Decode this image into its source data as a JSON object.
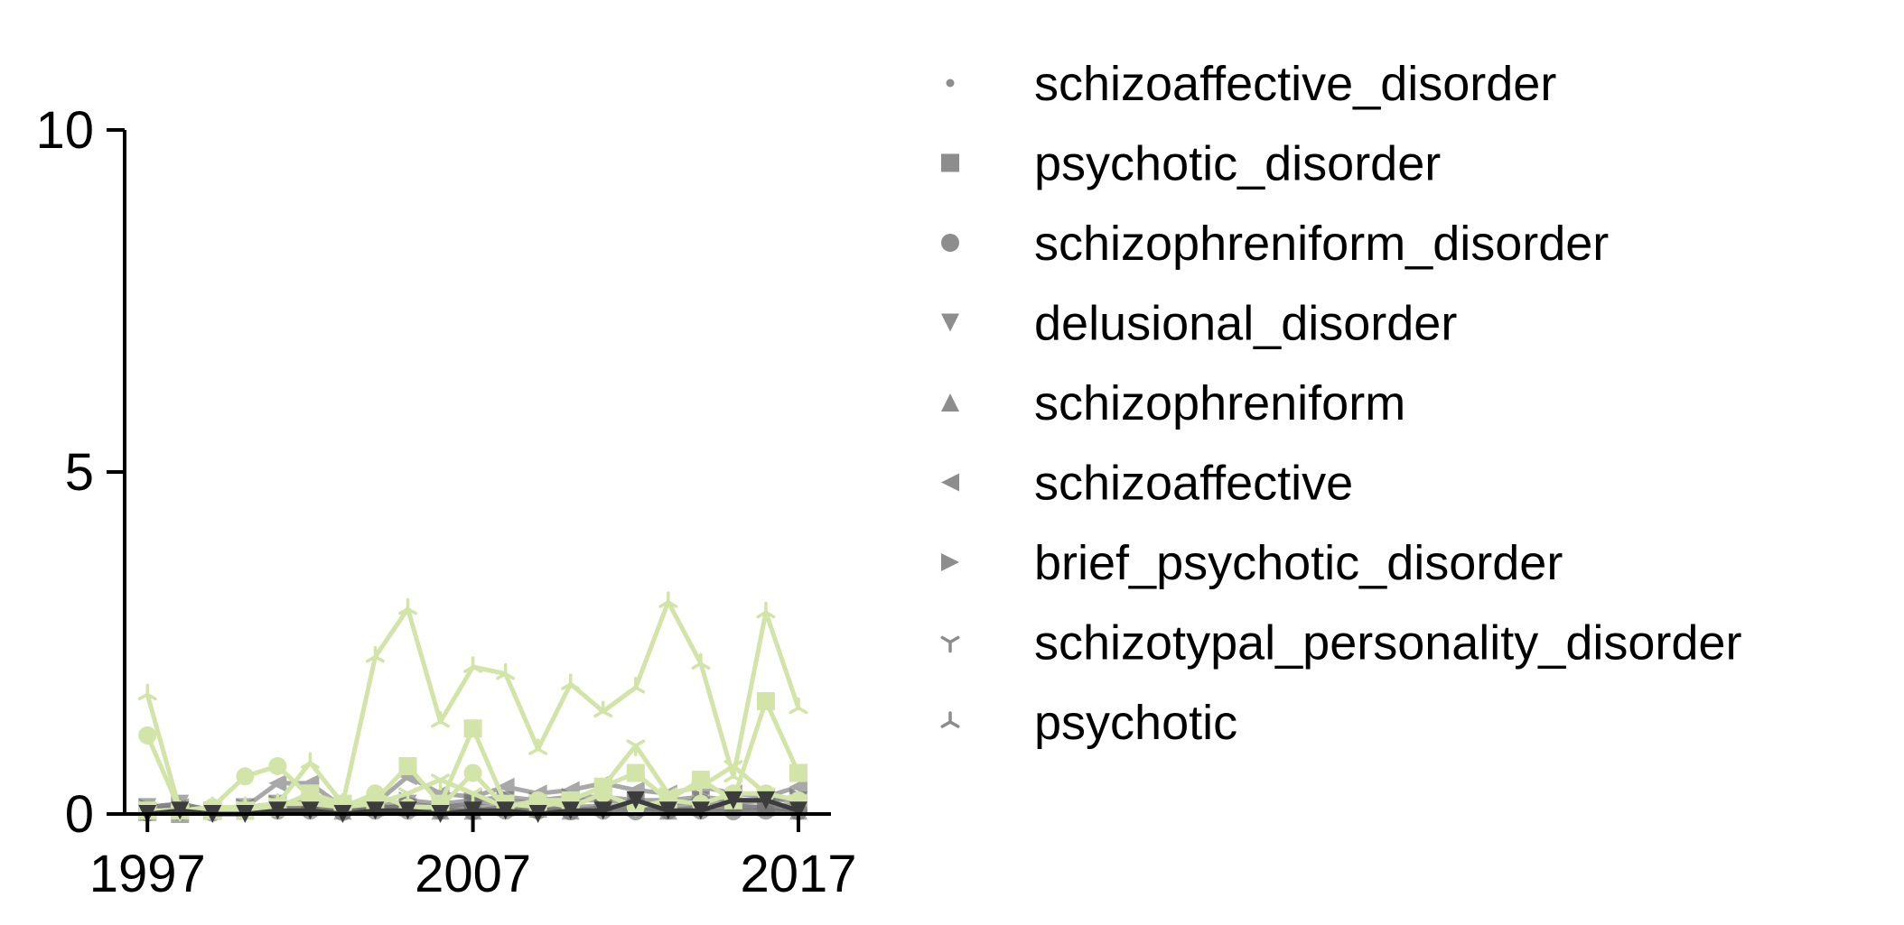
{
  "chart_data": {
    "type": "line",
    "x": [
      1997,
      1998,
      1999,
      2000,
      2001,
      2002,
      2003,
      2004,
      2005,
      2006,
      2007,
      2008,
      2009,
      2010,
      2011,
      2012,
      2013,
      2014,
      2015,
      2016,
      2017
    ],
    "xticks": [
      1997,
      2007,
      2017
    ],
    "xtick_labels": [
      "1997",
      "2007",
      "2017"
    ],
    "yticks": [
      0,
      5,
      10
    ],
    "ytick_labels": [
      "0",
      "5",
      "10"
    ],
    "xlim": [
      1996.3,
      2018.0
    ],
    "ylim": [
      0,
      10
    ],
    "grid": false,
    "legend_position": "right",
    "colors": {
      "green": "#d2e4a8",
      "gray": "#707070",
      "dark": "#3c3c3c",
      "axis": "#000000"
    },
    "series": [
      {
        "name": "schizoaffective_disorder",
        "marker": "point",
        "color": "#707070",
        "alpha": 0.6,
        "values": [
          0.03,
          0.02,
          0.02,
          0.05,
          0.04,
          0.06,
          0.03,
          0.05,
          0.04,
          0.06,
          0.05,
          0.04,
          0.06,
          0.05,
          0.04,
          0.05,
          0.06,
          0.04,
          0.05,
          0.05,
          0.06
        ]
      },
      {
        "name": "psychotic_disorder",
        "marker": "square",
        "color": "#707070",
        "alpha": 0.6,
        "values": [
          0.03,
          0.0,
          0.05,
          0.1,
          0.15,
          0.15,
          0.1,
          0.1,
          0.1,
          0.1,
          0.12,
          0.1,
          0.08,
          0.1,
          0.12,
          0.1,
          0.1,
          0.12,
          0.12,
          0.1,
          0.15
        ]
      },
      {
        "name": "schizophreniform_disorder",
        "marker": "circle",
        "color": "#707070",
        "alpha": 0.6,
        "values": [
          0.02,
          0.03,
          0.02,
          0.05,
          0.05,
          0.05,
          0.03,
          0.05,
          0.05,
          0.05,
          0.04,
          0.05,
          0.05,
          0.04,
          0.05,
          0.04,
          0.05,
          0.05,
          0.04,
          0.05,
          0.04
        ]
      },
      {
        "name": "delusional_disorder",
        "marker": "triangle-down",
        "color": "#707070",
        "alpha": 0.6,
        "values": [
          0.1,
          0.15,
          0.05,
          0.05,
          0.1,
          0.1,
          0.05,
          0.05,
          0.15,
          0.1,
          0.15,
          0.2,
          0.15,
          0.2,
          0.2,
          0.15,
          0.15,
          0.2,
          0.15,
          0.2,
          0.2
        ]
      },
      {
        "name": "schizophreniform",
        "marker": "triangle-up",
        "color": "#707070",
        "alpha": 0.6,
        "values": [
          0.05,
          0.05,
          0.05,
          0.05,
          0.1,
          0.1,
          0.05,
          0.1,
          0.1,
          0.05,
          0.05,
          0.1,
          0.1,
          0.05,
          0.1,
          0.1,
          0.05,
          0.1,
          0.1,
          0.1,
          0.05
        ]
      },
      {
        "name": "schizoaffective",
        "marker": "triangle-left",
        "color": "#707070",
        "alpha": 0.6,
        "values": [
          0.05,
          0.1,
          0.05,
          0.1,
          0.45,
          0.45,
          0.1,
          0.15,
          0.55,
          0.3,
          0.25,
          0.4,
          0.3,
          0.35,
          0.45,
          0.35,
          0.3,
          0.4,
          0.3,
          0.25,
          0.4
        ]
      },
      {
        "name": "brief_psychotic_disorder",
        "marker": "triangle-right",
        "color": "#707070",
        "alpha": 0.6,
        "values": [
          0.1,
          0.15,
          0.05,
          0.1,
          0.15,
          0.2,
          0.1,
          0.1,
          0.2,
          0.15,
          0.2,
          0.25,
          0.2,
          0.25,
          0.25,
          0.2,
          0.2,
          0.25,
          0.2,
          0.2,
          0.25
        ]
      },
      {
        "name": "schizotypal_personality_disorder",
        "marker": "tri-down",
        "color": "#d2e4a8",
        "alpha": 1,
        "values": [
          0.05,
          0.05,
          0.05,
          0.1,
          0.15,
          0.15,
          0.1,
          0.15,
          0.3,
          0.5,
          0.3,
          0.1,
          0.2,
          0.2,
          0.4,
          1.0,
          0.3,
          0.4,
          0.7,
          0.3,
          0.2
        ]
      },
      {
        "name": "psychotic",
        "marker": "tri-up",
        "color": "#d2e4a8",
        "alpha": 1,
        "values": [
          1.75,
          0.05,
          0.1,
          0.1,
          0.15,
          0.75,
          0.15,
          2.3,
          3.0,
          1.35,
          2.15,
          2.05,
          0.95,
          1.9,
          1.5,
          1.85,
          3.1,
          2.2,
          0.55,
          2.95,
          1.55
        ]
      }
    ],
    "extra_series": [
      {
        "color": "#d2e4a8",
        "marker": "circle",
        "values": [
          1.15,
          0.05,
          0.1,
          0.55,
          0.7,
          0.25,
          0.1,
          0.3,
          0.1,
          0.1,
          0.6,
          0.1,
          0.2,
          0.1,
          0.3,
          0.1,
          0.2,
          0.15,
          0.3,
          0.3,
          0.2
        ]
      },
      {
        "color": "#d2e4a8",
        "marker": "square",
        "values": [
          0.05,
          0.05,
          0.05,
          0.05,
          0.1,
          0.3,
          0.15,
          0.2,
          0.7,
          0.15,
          1.25,
          0.15,
          0.1,
          0.2,
          0.4,
          0.6,
          0.2,
          0.5,
          0.2,
          1.65,
          0.6
        ]
      },
      {
        "color": "#3c3c3c",
        "marker": "triangle-down",
        "values": [
          0.0,
          0.05,
          0.0,
          0.0,
          0.05,
          0.05,
          0.0,
          0.05,
          0.05,
          0.0,
          0.05,
          0.05,
          0.0,
          0.05,
          0.05,
          0.2,
          0.05,
          0.05,
          0.2,
          0.2,
          0.05
        ]
      }
    ]
  }
}
